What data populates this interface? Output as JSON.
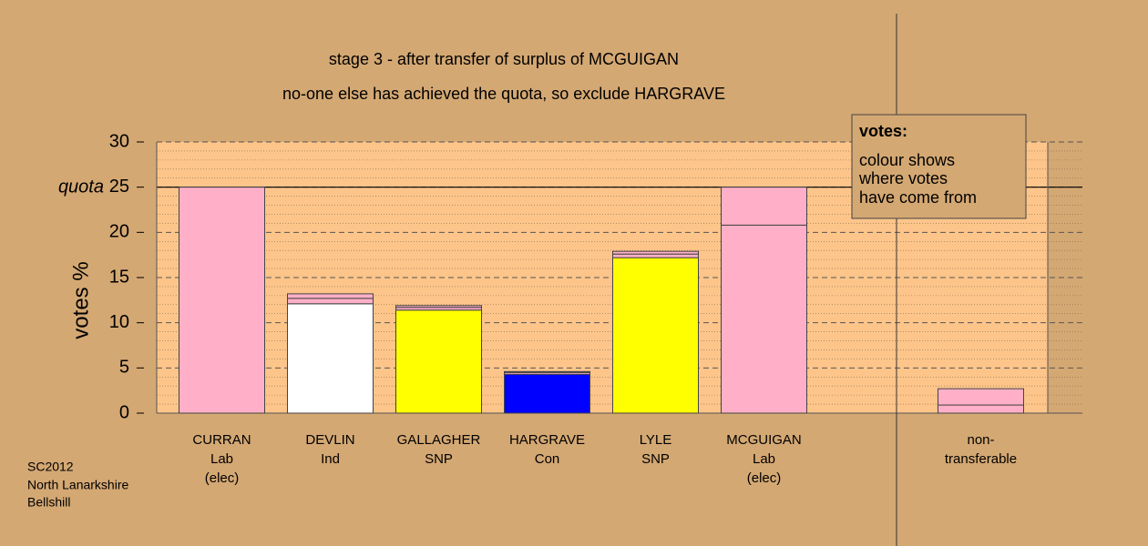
{
  "chart_data": {
    "type": "stacked_bar",
    "title": "stage 3 - after transfer of surplus of MCGUIGAN",
    "subtitle": "no-one else has achieved the quota, so exclude HARGRAVE",
    "y_label": "votes %",
    "quota_label": "quota",
    "quota": 25,
    "categories": [
      [
        "CURRAN",
        "Lab",
        "(elec)"
      ],
      [
        "DEVLIN",
        "Ind"
      ],
      [
        "GALLAGHER",
        "SNP"
      ],
      [
        "HARGRAVE",
        "Con"
      ],
      [
        "LYLE",
        "SNP"
      ],
      [
        "MCGUIGAN",
        "Lab",
        "(elec)"
      ],
      null,
      [
        "non-",
        "transferable"
      ]
    ],
    "series": [
      {
        "colors": [
          "#ffb0c8",
          "#ffffff",
          "#ffff00",
          "#0000ff",
          "#ffff00",
          "#ffb0c8",
          null,
          null
        ],
        "values": [
          25,
          12.1,
          11.4,
          4.3,
          17.2,
          20.8,
          null,
          null
        ]
      },
      {
        "color": "#ffb0c8",
        "values": [
          null,
          0.6,
          0.3,
          0.2,
          0.4,
          4.2,
          null,
          0.9
        ]
      },
      {
        "color": "#ffb0c8",
        "values": [
          null,
          0.5,
          0.2,
          0.1,
          0.3,
          null,
          null,
          1.8
        ]
      }
    ],
    "ylim": [
      0,
      30
    ],
    "yticks": [
      0,
      5,
      10,
      15,
      20,
      25,
      30
    ],
    "grid": true,
    "legend": {
      "title": "votes:",
      "lines": [
        "colour shows",
        "where votes",
        "have come from"
      ]
    },
    "footnote": [
      "SC2012",
      "North Lanarkshire",
      "Bellshill"
    ]
  }
}
